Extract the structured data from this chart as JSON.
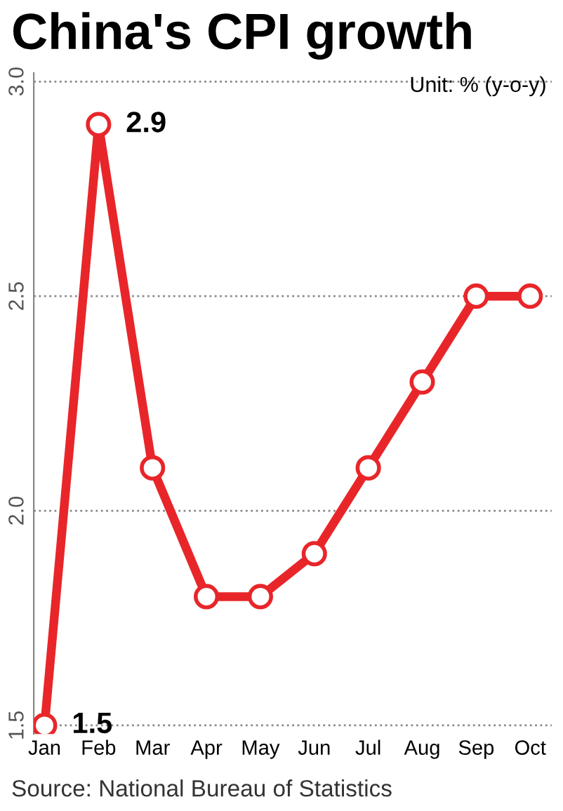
{
  "chart_data": {
    "type": "line",
    "title": "China's CPI growth",
    "categories": [
      "Jan",
      "Feb",
      "Mar",
      "Apr",
      "May",
      "Jun",
      "Jul",
      "Aug",
      "Sep",
      "Oct"
    ],
    "series": [
      {
        "color": "#e8262a",
        "values": [
          1.5,
          2.9,
          2.1,
          1.8,
          1.8,
          1.9,
          2.1,
          2.3,
          2.5,
          2.5
        ]
      }
    ],
    "ylim": [
      1.48,
      3.02
    ],
    "yticks": [
      {
        "value": 1.5,
        "label": "1.5"
      },
      {
        "value": 2.0,
        "label": "2.0"
      },
      {
        "value": 2.5,
        "label": "2.5"
      },
      {
        "value": 3.0,
        "label": "3.0"
      }
    ],
    "grid": "y",
    "marker": "circle",
    "line_style": "solid",
    "annotations": [
      {
        "text": "2.9",
        "x": "Feb",
        "y": 2.9
      },
      {
        "text": "1.5",
        "x": "Jan",
        "y": 1.5
      },
      "Unit: % (y-o-y)",
      "Source: National Bureau of Statistics"
    ]
  }
}
